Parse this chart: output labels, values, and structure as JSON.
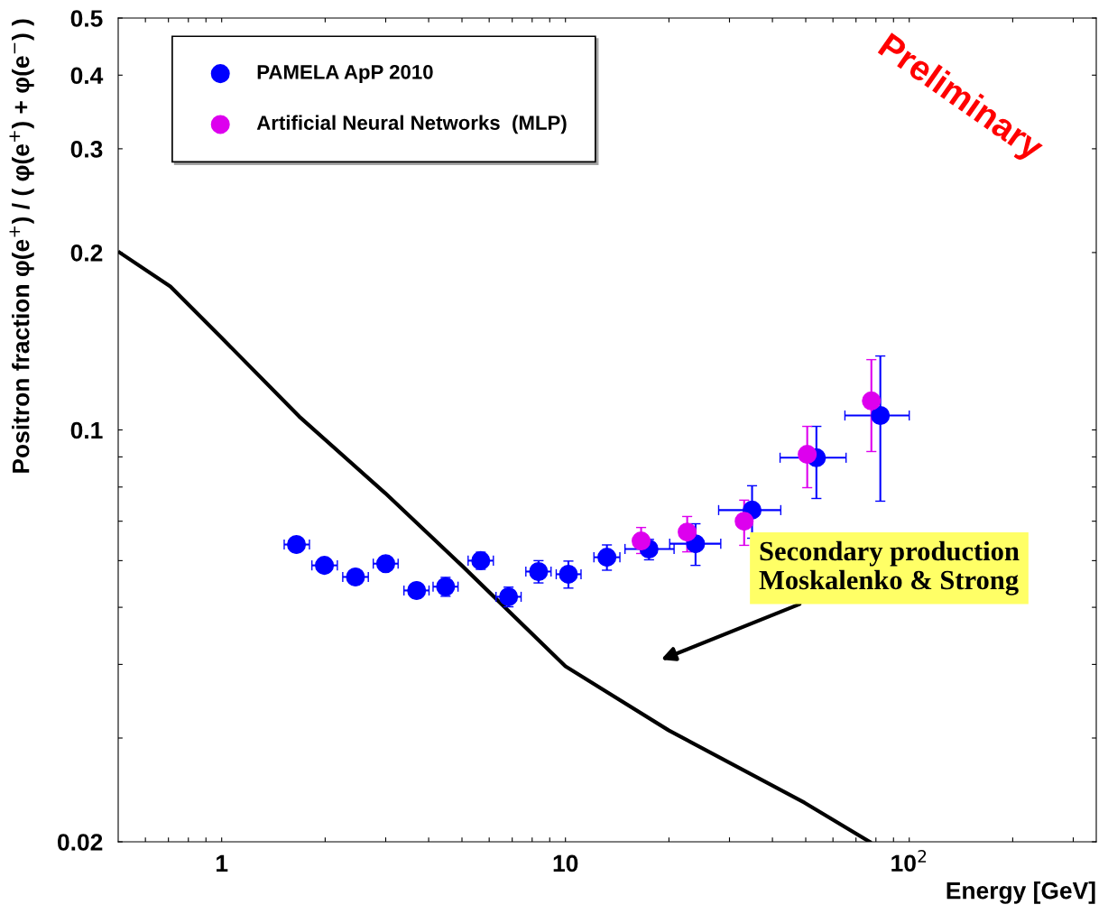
{
  "chart_data": {
    "type": "scatter",
    "xlabel": "Energy [GeV]",
    "ylabel": "Positron fraction φ(e$^{+}$) / ( φ(e$^{+}$) + φ(e$^{−}$) )",
    "log": "xy",
    "grid": false,
    "legend": "top left",
    "marker": "circle",
    "xlim": [
      0.5,
      350
    ],
    "ylim": [
      0.02,
      0.5
    ],
    "xticks": [
      {
        "value": 0.6,
        "label": null
      },
      {
        "value": 0.7,
        "label": null
      },
      {
        "value": 0.8,
        "label": null
      },
      {
        "value": 0.9,
        "label": null
      },
      1,
      {
        "value": 2,
        "label": null
      },
      {
        "value": 3,
        "label": null
      },
      {
        "value": 4,
        "label": null
      },
      {
        "value": 5,
        "label": null
      },
      {
        "value": 6,
        "label": null
      },
      {
        "value": 7,
        "label": null
      },
      {
        "value": 8,
        "label": null
      },
      {
        "value": 9,
        "label": null
      },
      10,
      {
        "value": 20,
        "label": null
      },
      {
        "value": 30,
        "label": null
      },
      {
        "value": 40,
        "label": null
      },
      {
        "value": 50,
        "label": null
      },
      {
        "value": 60,
        "label": null
      },
      {
        "value": 70,
        "label": null
      },
      {
        "value": 80,
        "label": null
      },
      {
        "value": 90,
        "label": null
      },
      {
        "value": 100,
        "label": "10$^{2}$"
      },
      {
        "value": 200,
        "label": null
      },
      {
        "value": 300,
        "label": null
      }
    ],
    "yticks": [
      0.02,
      {
        "value": 0.03,
        "label": null
      },
      {
        "value": 0.04,
        "label": null
      },
      {
        "value": 0.05,
        "label": null
      },
      {
        "value": 0.06,
        "label": null
      },
      {
        "value": 0.07,
        "label": null
      },
      {
        "value": 0.08,
        "label": null
      },
      {
        "value": 0.09,
        "label": null
      },
      0.1,
      0.2,
      0.3,
      0.4,
      0.5
    ],
    "series": [
      {
        "name": "PAMELA ApP 2010",
        "color": "#0000ff",
        "x": [
          1.65,
          1.99,
          2.45,
          3.0,
          3.69,
          4.48,
          5.67,
          6.83,
          8.35,
          10.2,
          13.2,
          17.5,
          23.9,
          34.9,
          53.7,
          82.4
        ],
        "values": [
          0.0639,
          0.0589,
          0.0563,
          0.0593,
          0.0534,
          0.0542,
          0.06,
          0.0521,
          0.0575,
          0.0569,
          0.0608,
          0.0628,
          0.0641,
          0.0731,
          0.0897,
          0.1058
        ],
        "errors": [
          0.0015,
          0.0015,
          0.0015,
          0.0015,
          0.0015,
          0.002,
          0.002,
          0.002,
          0.0025,
          0.003,
          0.003,
          [
            0.0602,
            0.0652
          ],
          [
            0.0589,
            0.0693
          ],
          [
            0.0655,
            0.0804
          ],
          [
            0.0765,
            0.1014
          ],
          [
            0.0757,
            0.1335
          ]
        ],
        "xerrors": [
          [
            1.52,
            1.8
          ],
          [
            1.83,
            2.17
          ],
          [
            2.25,
            2.67
          ],
          [
            2.76,
            3.26
          ],
          [
            3.39,
            4.01
          ],
          [
            4.12,
            4.87
          ],
          [
            5.21,
            6.17
          ],
          [
            6.28,
            7.43
          ],
          [
            7.67,
            9.08
          ],
          [
            9.4,
            11.1
          ],
          [
            12.1,
            14.4
          ],
          [
            14.9,
            20.7
          ],
          [
            20.1,
            28.3
          ],
          [
            27.9,
            42.3
          ],
          [
            42.1,
            65.5
          ],
          [
            65.0,
            100
          ]
        ]
      },
      {
        "name": "Artificial Neural Networks  (MLP)",
        "color": "#dd00ee",
        "x": [
          16.6,
          22.6,
          33.1,
          50.5,
          77.6
        ],
        "values": [
          0.0648,
          0.0671,
          0.07,
          0.0909,
          0.112
        ],
        "errors": [
          [
            0.0617,
            0.0683
          ],
          [
            0.0621,
            0.0713
          ],
          [
            0.0637,
            0.076
          ],
          [
            0.0798,
            0.1014
          ],
          [
            0.0919,
            0.1316
          ]
        ]
      },
      {
        "type": "line",
        "color": "#000000",
        "marker": "none",
        "x": [
          0.505,
          0.709,
          1,
          1.68,
          2.99,
          4.99,
          10,
          20,
          49.6,
          76.7
        ],
        "values": [
          0.2,
          0.1752,
          0.1433,
          0.1054,
          0.0781,
          0.0589,
          0.0397,
          0.0309,
          0.0233,
          0.02
        ]
      }
    ],
    "annotations": [
      "Secondary production\nMoskalenko & Strong",
      "Preliminary"
    ]
  }
}
